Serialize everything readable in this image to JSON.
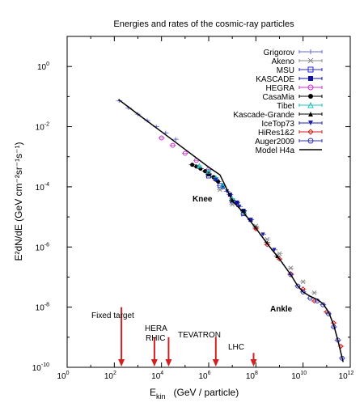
{
  "chart_data": {
    "type": "scatter",
    "title": "Energies and rates of the cosmic-ray particles",
    "x_axis": {
      "label_main": "E",
      "label_sub": "kin",
      "label_unit": "(GeV / particle)",
      "scale": "log",
      "range": [
        1,
        1000000000000.0
      ],
      "ticks": [
        {
          "value": 1,
          "base": "10",
          "exp": "0"
        },
        {
          "value": 100,
          "base": "10",
          "exp": "2"
        },
        {
          "value": 10000,
          "base": "10",
          "exp": "4"
        },
        {
          "value": 1000000,
          "base": "10",
          "exp": "6"
        },
        {
          "value": 100000000,
          "base": "10",
          "exp": "8"
        },
        {
          "value": 10000000000,
          "base": "10",
          "exp": "10"
        },
        {
          "value": 1000000000000,
          "base": "10",
          "exp": "12"
        }
      ]
    },
    "y_axis": {
      "label": "E²dN/dE   (GeV cm⁻²sr⁻¹s⁻¹)",
      "scale": "log",
      "range": [
        1e-10,
        10
      ],
      "ticks": [
        {
          "value": 1,
          "base": "10",
          "exp": "0"
        },
        {
          "value": 0.01,
          "base": "10",
          "exp": "-2"
        },
        {
          "value": 0.0001,
          "base": "10",
          "exp": "-4"
        },
        {
          "value": 1e-06,
          "base": "10",
          "exp": "-6"
        },
        {
          "value": 1e-08,
          "base": "10",
          "exp": "-8"
        },
        {
          "value": 1e-10,
          "base": "10",
          "exp": "-10"
        }
      ]
    },
    "legend_position": "top-right",
    "series": [
      {
        "name": "Grigorov",
        "color": "#6a6ad8",
        "marker": "plus",
        "points": [
          [
            160.0,
            0.072
          ],
          [
            400.0,
            0.042
          ],
          [
            1000.0,
            0.026
          ],
          [
            2500.0,
            0.016
          ],
          [
            6000.0,
            0.01
          ],
          [
            15000.0,
            0.0062
          ],
          [
            40000.0,
            0.0038
          ]
        ]
      },
      {
        "name": "Akeno",
        "color": "#8a8a8a",
        "marker": "x",
        "points": [
          [
            3000000.0,
            8e-05
          ],
          [
            10000000.0,
            2.6e-05
          ],
          [
            30000000.0,
            1.2e-05
          ],
          [
            100000000.0,
            5e-06
          ],
          [
            300000000.0,
            1.8e-06
          ],
          [
            1000000000.0,
            6e-07
          ],
          [
            3000000000.0,
            2e-07
          ],
          [
            10000000000.0,
            7e-08
          ],
          [
            30000000000.0,
            3e-08
          ]
        ]
      },
      {
        "name": "MSU",
        "color": "#2a2ad0",
        "marker": "square-open",
        "points": [
          [
            1000000.0,
            0.00023
          ],
          [
            3000000.0,
            0.00011
          ],
          [
            10000000.0,
            3.4e-05
          ],
          [
            30000000.0,
            1.3e-05
          ]
        ]
      },
      {
        "name": "KASCADE",
        "color": "#1010a0",
        "marker": "square",
        "points": [
          [
            1000000.0,
            0.00026
          ],
          [
            2000000.0,
            0.00018
          ],
          [
            4000000.0,
            0.0001
          ],
          [
            8000000.0,
            5.5e-05
          ],
          [
            16000000.0,
            3e-05
          ],
          [
            30000000.0,
            1.6e-05
          ],
          [
            60000000.0,
            8e-06
          ]
        ]
      },
      {
        "name": "HEGRA",
        "color": "#d030d0",
        "marker": "circle-open",
        "points": [
          [
            10000.0,
            0.0042
          ],
          [
            30000.0,
            0.0024
          ],
          [
            100000.0,
            0.0013
          ],
          [
            300000.0,
            0.00075
          ],
          [
            1000000.0,
            0.00038
          ]
        ]
      },
      {
        "name": "CasaMia",
        "color": "#000000",
        "marker": "circle",
        "points": [
          [
            200000.0,
            0.00054
          ],
          [
            300000.0,
            0.00047
          ],
          [
            450000.0,
            0.0004
          ],
          [
            700000.0,
            0.00033
          ],
          [
            1000000.0,
            0.00027
          ],
          [
            1600000.0,
            0.00021
          ],
          [
            2500000.0,
            0.00015
          ]
        ]
      },
      {
        "name": "Tibet",
        "color": "#20c0c0",
        "marker": "triangle-open",
        "points": [
          [
            400000.0,
            0.0005
          ],
          [
            1000000.0,
            0.00033
          ],
          [
            2000000.0,
            0.0002
          ],
          [
            4000000.0,
            0.00011
          ],
          [
            10000000.0,
            4e-05
          ],
          [
            30000000.0,
            1.5e-05
          ]
        ]
      },
      {
        "name": "Kascade-Grande",
        "color": "#000000",
        "marker": "triangle",
        "points": [
          [
            10000000.0,
            3.6e-05
          ],
          [
            30000000.0,
            1.6e-05
          ],
          [
            100000000.0,
            4.5e-06
          ],
          [
            300000000.0,
            1.4e-06
          ],
          [
            800000000.0,
            5e-07
          ]
        ]
      },
      {
        "name": "IceTop73",
        "color": "#2020b0",
        "marker": "triangle-down",
        "points": [
          [
            2000000.0,
            0.00017
          ],
          [
            6000000.0,
            7e-05
          ],
          [
            20000000.0,
            2.2e-05
          ],
          [
            60000000.0,
            8e-06
          ],
          [
            200000000.0,
            2.6e-06
          ],
          [
            600000000.0,
            8e-07
          ]
        ]
      },
      {
        "name": "HiRes1&2",
        "color": "#d02020",
        "marker": "diamond-open",
        "points": [
          [
            100000000.0,
            4e-06
          ],
          [
            300000000.0,
            1.2e-06
          ],
          [
            1000000000.0,
            4e-07
          ],
          [
            3000000000.0,
            1.3e-07
          ],
          [
            10000000000.0,
            4e-08
          ],
          [
            30000000000.0,
            1.6e-08
          ],
          [
            100000000000.0,
            7e-09
          ],
          [
            200000000000.0,
            3e-09
          ],
          [
            400000000000.0,
            5e-10
          ]
        ]
      },
      {
        "name": "Auger2009",
        "color": "#3030c0",
        "marker": "circle-open",
        "points": [
          [
            3000000000.0,
            1.2e-07
          ],
          [
            6000000000.0,
            5e-08
          ],
          [
            10000000000.0,
            3.2e-08
          ],
          [
            20000000000.0,
            2e-08
          ],
          [
            40000000000.0,
            1.6e-08
          ],
          [
            70000000000.0,
            1.2e-08
          ],
          [
            120000000000.0,
            6e-09
          ],
          [
            200000000000.0,
            2.2e-09
          ],
          [
            300000000000.0,
            8e-10
          ],
          [
            450000000000.0,
            2e-10
          ]
        ]
      },
      {
        "name": "Model H4a",
        "color": "#000000",
        "marker": "line",
        "points": [
          [
            150.0,
            0.08
          ],
          [
            1000.0,
            0.026
          ],
          [
            10000.0,
            0.0068
          ],
          [
            100000.0,
            0.00175
          ],
          [
            1000000.0,
            0.00045
          ],
          [
            3000000.0,
            0.00025
          ],
          [
            5000000.0,
            0.00011
          ],
          [
            10000000.0,
            3.4e-05
          ],
          [
            30000000.0,
            1.4e-05
          ],
          [
            100000000.0,
            4.2e-06
          ],
          [
            300000000.0,
            1.3e-06
          ],
          [
            1000000000.0,
            4e-07
          ],
          [
            3000000000.0,
            1.2e-07
          ],
          [
            6000000000.0,
            5e-08
          ],
          [
            10000000000.0,
            3.2e-08
          ],
          [
            20000000000.0,
            2.3e-08
          ],
          [
            40000000000.0,
            1.8e-08
          ],
          [
            70000000000.0,
            1.3e-08
          ],
          [
            120000000000.0,
            7e-09
          ],
          [
            200000000000.0,
            2.5e-09
          ],
          [
            300000000000.0,
            8e-10
          ],
          [
            500000000000.0,
            1.5e-10
          ]
        ]
      }
    ],
    "annotations": {
      "knee": "Knee",
      "ankle": "Ankle",
      "fixed_target": "Fixed target",
      "hera": "HERA",
      "rhic": "RHIC",
      "tevatron": "TEVATRON",
      "lhc": "LHC"
    },
    "arrows": [
      {
        "name": "fixed-target",
        "x": 200,
        "y_top": 1e-08
      },
      {
        "name": "hera",
        "x": 5000,
        "y_top": 1e-09
      },
      {
        "name": "rhic",
        "x": 20000,
        "y_top": 1e-09
      },
      {
        "name": "tevatron",
        "x": 2000000,
        "y_top": 1e-09
      },
      {
        "name": "lhc",
        "x": 80000000,
        "y_top": 3e-10
      }
    ],
    "colors": {
      "arrow": "#d02020",
      "axis": "#000000"
    }
  }
}
